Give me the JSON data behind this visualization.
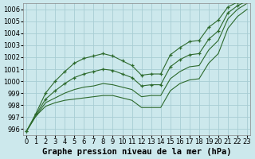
{
  "title": "Graphe pression niveau de la mer (hPa)",
  "bg_color": "#cce8ec",
  "grid_color": "#a8cdd4",
  "line_color": "#2d6a2d",
  "marker_color": "#2d6a2d",
  "ylim": [
    995.5,
    1006.5
  ],
  "xlim": [
    -0.3,
    23.3
  ],
  "yticks": [
    996,
    997,
    998,
    999,
    1000,
    1001,
    1002,
    1003,
    1004,
    1005,
    1006
  ],
  "xticks": [
    0,
    1,
    2,
    3,
    4,
    5,
    6,
    7,
    8,
    9,
    10,
    11,
    12,
    13,
    14,
    15,
    16,
    17,
    18,
    19,
    20,
    21,
    22,
    23
  ],
  "series": [
    [
      995.8,
      997.1,
      997.9,
      998.2,
      998.4,
      998.5,
      998.6,
      998.7,
      998.8,
      998.8,
      998.6,
      998.4,
      997.8,
      997.8,
      997.8,
      999.2,
      999.8,
      1000.1,
      1000.2,
      1001.5,
      1002.3,
      1004.4,
      1005.4,
      1006.0
    ],
    [
      995.8,
      997.1,
      998.2,
      998.6,
      999.0,
      999.3,
      999.5,
      999.6,
      999.8,
      999.7,
      999.5,
      999.3,
      998.7,
      998.8,
      998.8,
      1000.2,
      1000.8,
      1001.2,
      1001.3,
      1002.6,
      1003.4,
      1005.2,
      1006.0,
      1006.5
    ],
    [
      995.8,
      997.2,
      998.5,
      999.2,
      999.8,
      1000.3,
      1000.6,
      1000.8,
      1001.0,
      1000.9,
      1000.6,
      1000.3,
      999.6,
      999.7,
      999.7,
      1001.2,
      1001.8,
      1002.2,
      1002.3,
      1003.5,
      1004.2,
      1005.7,
      1006.3,
      1006.7
    ],
    [
      995.8,
      997.3,
      999.0,
      1000.0,
      1000.8,
      1001.5,
      1001.9,
      1002.1,
      1002.3,
      1002.1,
      1001.7,
      1001.3,
      1000.5,
      1000.6,
      1000.6,
      1002.2,
      1002.8,
      1003.3,
      1003.4,
      1004.5,
      1005.1,
      1006.2,
      1006.6,
      1006.9
    ]
  ],
  "series_markers": [
    false,
    false,
    true,
    true
  ],
  "marker": "+",
  "marker_size": 3.5,
  "font_family": "monospace",
  "xlabel_fontsize": 7.5,
  "tick_fontsize": 6.0,
  "linewidth": 0.8
}
